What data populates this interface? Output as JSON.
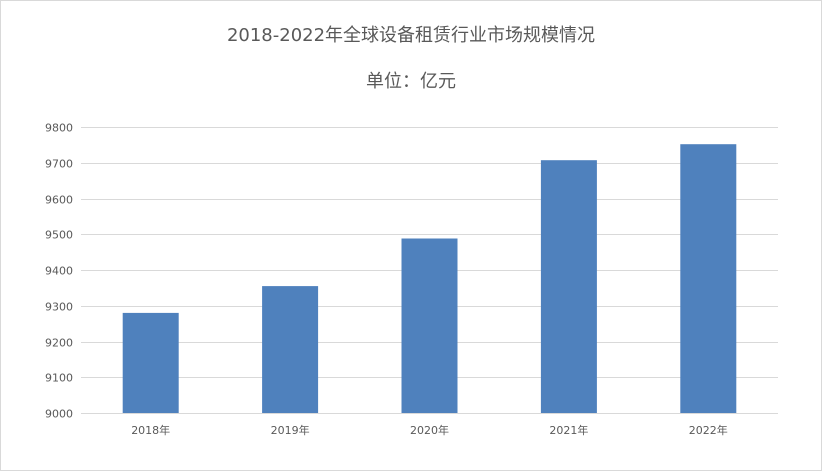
{
  "chart_data": {
    "type": "bar",
    "title": "2018-2022年全球设备租赁行业市场规模情况",
    "subtitle": "单位：亿元",
    "categories": [
      "2018年",
      "2019年",
      "2020年",
      "2021年",
      "2022年"
    ],
    "values": [
      9280,
      9355,
      9488,
      9707,
      9752
    ],
    "xlabel": "",
    "ylabel": "",
    "ylim": [
      9000,
      9800
    ],
    "yticks": [
      9000,
      9100,
      9200,
      9300,
      9400,
      9500,
      9600,
      9700,
      9800
    ],
    "grid": true,
    "legend": "none",
    "colors": {
      "bar": "#4f81bd",
      "grid": "#d9d9d9",
      "text": "#595959"
    }
  }
}
